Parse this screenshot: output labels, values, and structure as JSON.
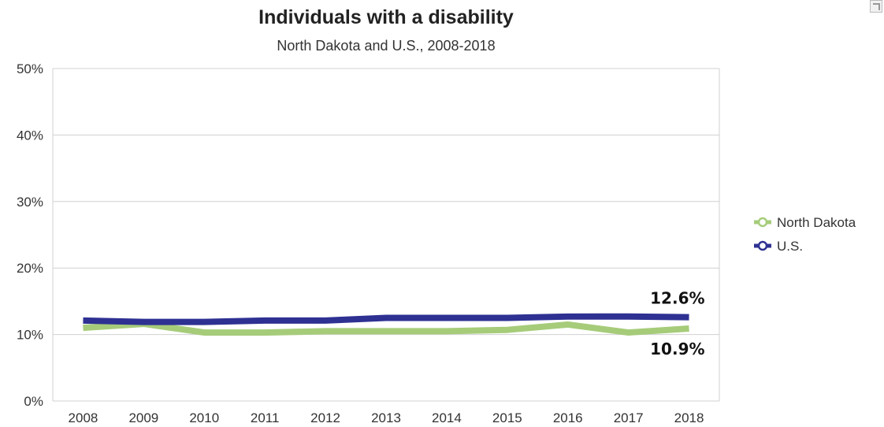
{
  "chart_data": {
    "type": "line",
    "title": "Individuals with a disability",
    "subtitle": "North Dakota and U.S., 2008-2018",
    "xlabel": "",
    "ylabel": "",
    "categories": [
      "2008",
      "2009",
      "2010",
      "2011",
      "2012",
      "2013",
      "2014",
      "2015",
      "2016",
      "2017",
      "2018"
    ],
    "y_ticks": [
      "0%",
      "10%",
      "20%",
      "30%",
      "40%",
      "50%"
    ],
    "ylim": [
      0,
      50
    ],
    "grid": true,
    "legend_position": "right",
    "series": [
      {
        "name": "North Dakota",
        "color": "#a6cc7a",
        "values": [
          11.0,
          11.6,
          10.3,
          10.3,
          10.5,
          10.5,
          10.5,
          10.7,
          11.5,
          10.3,
          10.9
        ],
        "end_label": "10.9%"
      },
      {
        "name": "U.S.",
        "color": "#2e3192",
        "values": [
          12.1,
          11.9,
          11.9,
          12.1,
          12.1,
          12.5,
          12.5,
          12.5,
          12.7,
          12.7,
          12.6
        ],
        "end_label": "12.6%"
      }
    ]
  }
}
